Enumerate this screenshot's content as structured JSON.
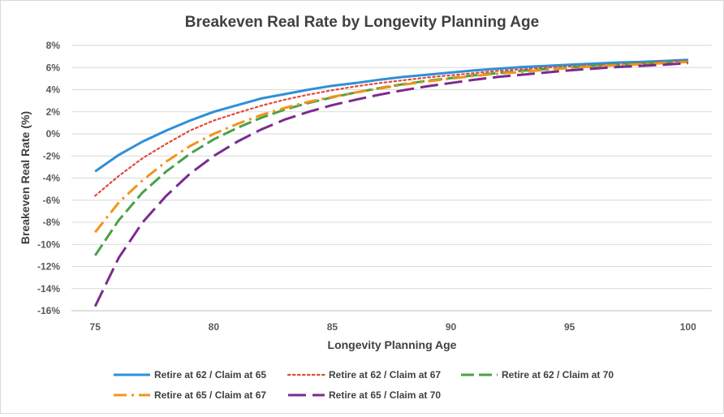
{
  "chart_data": {
    "type": "line",
    "title": "Breakeven  Real Rate by Longevity Planning Age",
    "xlabel": "Longevity Planning Age",
    "ylabel": "Breakeven Real Rate (%)",
    "xlim": [
      74,
      101
    ],
    "ylim": [
      -16,
      8
    ],
    "x_ticks": [
      75,
      80,
      85,
      90,
      95,
      100
    ],
    "x_tick_labels": [
      "75",
      "80",
      "85",
      "90",
      "95",
      "100"
    ],
    "y_ticks": [
      8,
      6,
      4,
      2,
      0,
      -2,
      -4,
      -6,
      -8,
      -10,
      -12,
      -14,
      -16
    ],
    "y_tick_labels": [
      "8%",
      "6%",
      "4%",
      "2%",
      "0%",
      "-2%",
      "-4%",
      "-6%",
      "-8%",
      "-10%",
      "-12%",
      "-14%",
      "-16%"
    ],
    "grid": "horizontal",
    "legend_position": "bottom",
    "x": [
      75,
      76,
      77,
      78,
      79,
      80,
      81,
      82,
      83,
      84,
      85,
      86,
      87,
      88,
      89,
      90,
      91,
      92,
      93,
      94,
      95,
      96,
      97,
      98,
      99,
      100
    ],
    "series": [
      {
        "name": "Retire at 62 / Claim at 65",
        "color": "#2e8fd8",
        "dash": "solid",
        "values": [
          -3.4,
          -1.9,
          -0.7,
          0.3,
          1.2,
          2.0,
          2.6,
          3.2,
          3.6,
          4.0,
          4.35,
          4.6,
          4.9,
          5.15,
          5.35,
          5.55,
          5.75,
          5.9,
          6.05,
          6.15,
          6.25,
          6.35,
          6.45,
          6.5,
          6.6,
          6.7
        ]
      },
      {
        "name": "Retire at 62 / Claim at 67",
        "color": "#e2493c",
        "dash": "dot",
        "values": [
          -5.6,
          -3.8,
          -2.2,
          -0.9,
          0.3,
          1.2,
          1.9,
          2.55,
          3.1,
          3.55,
          3.95,
          4.3,
          4.6,
          4.85,
          5.1,
          5.3,
          5.5,
          5.7,
          5.85,
          6.0,
          6.1,
          6.2,
          6.3,
          6.4,
          6.5,
          6.6
        ]
      },
      {
        "name": "Retire at 62 / Claim at 70",
        "color": "#4ba049",
        "dash": "dash",
        "values": [
          -11.0,
          -7.8,
          -5.3,
          -3.4,
          -1.8,
          -0.5,
          0.55,
          1.45,
          2.2,
          2.8,
          3.3,
          3.75,
          4.15,
          4.5,
          4.8,
          5.05,
          5.3,
          5.5,
          5.7,
          5.85,
          6.0,
          6.15,
          6.25,
          6.35,
          6.45,
          6.55
        ]
      },
      {
        "name": "Retire at 65 / Claim at 67",
        "color": "#f39419",
        "dash": "dashdot",
        "values": [
          -8.9,
          -6.2,
          -4.2,
          -2.5,
          -1.1,
          0.0,
          0.9,
          1.7,
          2.35,
          2.9,
          3.35,
          3.75,
          4.1,
          4.45,
          4.75,
          5.0,
          5.25,
          5.45,
          5.6,
          5.8,
          5.95,
          6.1,
          6.2,
          6.3,
          6.4,
          6.5
        ]
      },
      {
        "name": "Retire at 65 / Claim at 70",
        "color": "#7b2b8f",
        "dash": "longdash",
        "values": [
          -15.6,
          -11.2,
          -8.0,
          -5.6,
          -3.6,
          -2.0,
          -0.7,
          0.4,
          1.3,
          2.0,
          2.6,
          3.1,
          3.55,
          3.95,
          4.3,
          4.6,
          4.9,
          5.15,
          5.35,
          5.55,
          5.75,
          5.9,
          6.05,
          6.15,
          6.25,
          6.4
        ]
      }
    ]
  }
}
